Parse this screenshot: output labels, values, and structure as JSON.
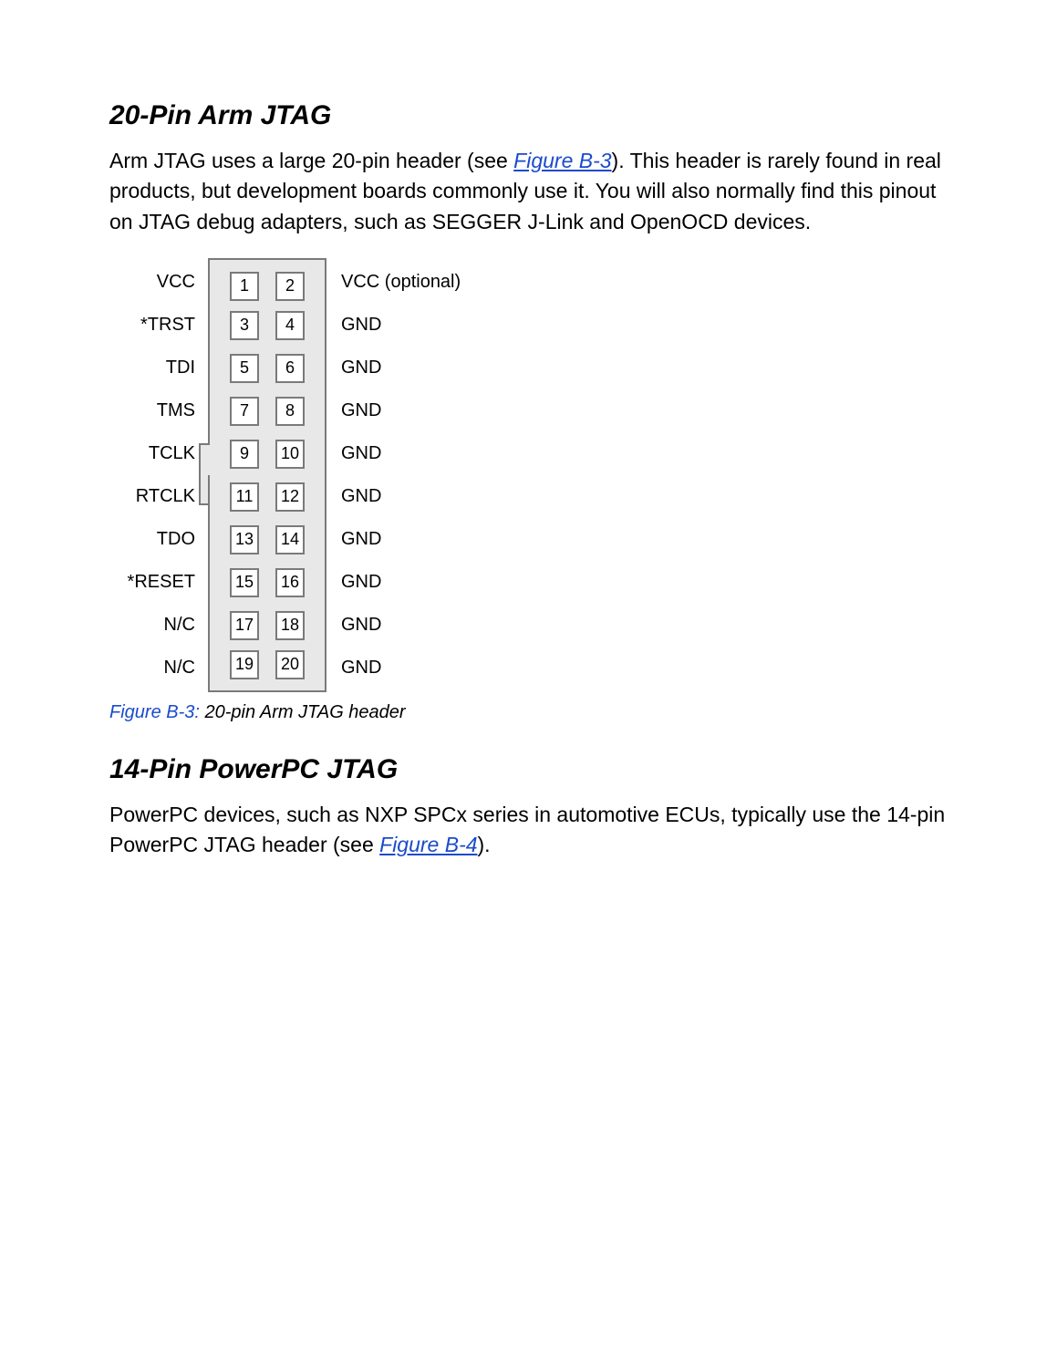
{
  "section1": {
    "heading": "20-Pin Arm JTAG",
    "para_pre": "Arm JTAG uses a large 20-pin header (see ",
    "link": "Figure B-3",
    "para_post": "). This header is rarely found in real products, but development boards commonly use it. You will also normally find this pinout on JTAG debug adapters, such as SEGGER J-Link and OpenOCD devices."
  },
  "pinout": {
    "rows": [
      {
        "left": "VCC",
        "p1": "1",
        "p2": "2",
        "right": "VCC (optional)"
      },
      {
        "left": "*TRST",
        "p1": "3",
        "p2": "4",
        "right": "GND"
      },
      {
        "left": "TDI",
        "p1": "5",
        "p2": "6",
        "right": "GND"
      },
      {
        "left": "TMS",
        "p1": "7",
        "p2": "8",
        "right": "GND"
      },
      {
        "left": "TCLK",
        "p1": "9",
        "p2": "10",
        "right": "GND"
      },
      {
        "left": "RTCLK",
        "p1": "11",
        "p2": "12",
        "right": "GND"
      },
      {
        "left": "TDO",
        "p1": "13",
        "p2": "14",
        "right": "GND"
      },
      {
        "left": "*RESET",
        "p1": "15",
        "p2": "16",
        "right": "GND"
      },
      {
        "left": "N/C",
        "p1": "17",
        "p2": "18",
        "right": "GND"
      },
      {
        "left": "N/C",
        "p1": "19",
        "p2": "20",
        "right": "GND"
      }
    ],
    "notch_row_index": 4,
    "colors": {
      "connector_bg": "#e8e8e8",
      "border": "#7a7a7a",
      "pin_bg": "#ffffff"
    }
  },
  "caption": {
    "id": "Figure B-3:",
    "text": " 20-pin Arm JTAG header"
  },
  "section2": {
    "heading": "14-Pin PowerPC JTAG",
    "para_pre": "PowerPC devices, such as NXP SPCx series in automotive ECUs, typically use the 14-pin PowerPC JTAG header (see ",
    "link": "Figure B-4",
    "para_post": ")."
  }
}
